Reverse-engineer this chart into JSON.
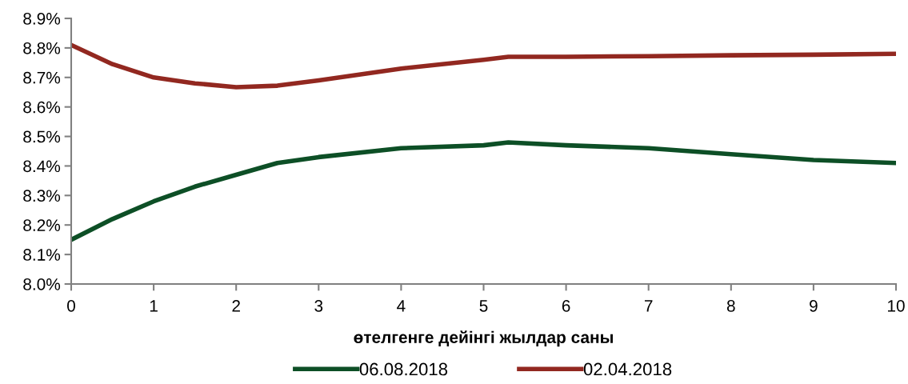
{
  "chart_data": {
    "type": "line",
    "xlabel": "өтелгенге дейінгі жылдар саны",
    "xlim": [
      0,
      10
    ],
    "xticks": [
      0,
      1,
      2,
      3,
      4,
      5,
      6,
      7,
      8,
      9,
      10
    ],
    "ylim": [
      8.0,
      8.9
    ],
    "yticks": [
      {
        "value": 8.0,
        "label": "8.0%"
      },
      {
        "value": 8.1,
        "label": "8.1%"
      },
      {
        "value": 8.2,
        "label": "8.2%"
      },
      {
        "value": 8.3,
        "label": "8.3%"
      },
      {
        "value": 8.4,
        "label": "8.4%"
      },
      {
        "value": 8.5,
        "label": "8.5%"
      },
      {
        "value": 8.6,
        "label": "8.6%"
      },
      {
        "value": 8.7,
        "label": "8.7%"
      },
      {
        "value": 8.8,
        "label": "8.8%"
      },
      {
        "value": 8.9,
        "label": "8.9%"
      }
    ],
    "grid": false,
    "legend": "bottom",
    "marker": "none",
    "line_style": "solid",
    "series": [
      {
        "name": "06.08.2018",
        "color": "#0d4f26",
        "x": [
          0,
          0.5,
          1,
          1.5,
          2,
          2.5,
          3,
          4,
          5,
          5.3,
          6,
          7,
          8,
          9,
          10
        ],
        "values": [
          8.15,
          8.22,
          8.28,
          8.33,
          8.37,
          8.41,
          8.43,
          8.46,
          8.47,
          8.48,
          8.47,
          8.46,
          8.44,
          8.42,
          8.41
        ]
      },
      {
        "name": "02.04.2018",
        "color": "#922820",
        "x": [
          0,
          0.5,
          1,
          1.5,
          2,
          2.5,
          3,
          4,
          5,
          5.3,
          6,
          7,
          8,
          9,
          10
        ],
        "values": [
          8.81,
          8.745,
          8.7,
          8.68,
          8.667,
          8.672,
          8.69,
          8.73,
          8.76,
          8.77,
          8.77,
          8.772,
          8.775,
          8.777,
          8.78
        ]
      }
    ]
  }
}
